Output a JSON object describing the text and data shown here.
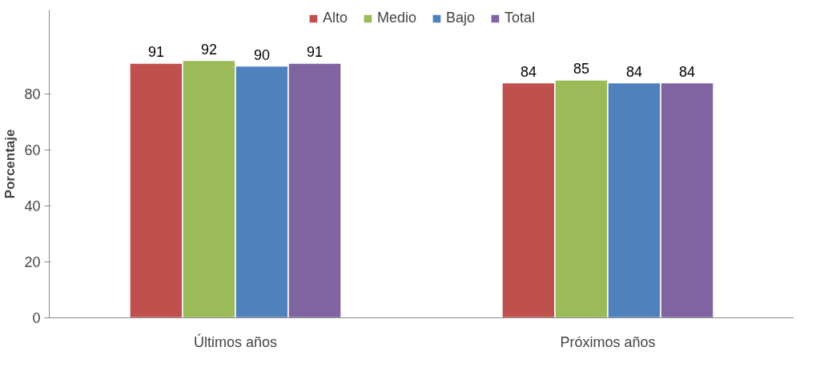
{
  "chart_data": {
    "type": "bar",
    "ylabel": "Porcentaje",
    "categories": [
      "Últimos años",
      "Próximos años"
    ],
    "series": [
      {
        "name": "Alto",
        "color": "#c0504d",
        "values": [
          91,
          84
        ]
      },
      {
        "name": "Medio",
        "color": "#9bbb59",
        "values": [
          92,
          85
        ]
      },
      {
        "name": "Bajo",
        "color": "#4f81bd",
        "values": [
          90,
          84
        ]
      },
      {
        "name": "Total",
        "color": "#8064a2",
        "values": [
          91,
          84
        ]
      }
    ],
    "ylim": [
      0,
      110
    ],
    "yticks": [
      0,
      20,
      40,
      60,
      80
    ],
    "grid": false,
    "legend": "top",
    "data_labels": true
  }
}
